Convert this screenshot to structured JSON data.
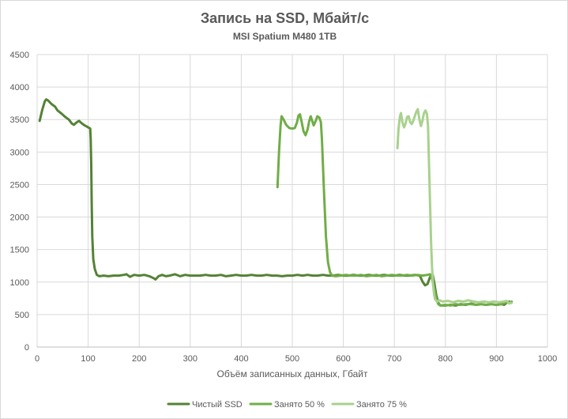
{
  "chart_data": {
    "type": "line",
    "title": "Запись на SSD, Мбайт/с",
    "subtitle": "MSI Spatium M480 1TB",
    "xlabel": "Объём записанных данных, Гбайт",
    "ylabel": "",
    "xlim": [
      0,
      1000
    ],
    "ylim": [
      0,
      4500
    ],
    "xticks": [
      0,
      100,
      200,
      300,
      400,
      500,
      600,
      700,
      800,
      900,
      1000
    ],
    "yticks": [
      0,
      500,
      1000,
      1500,
      2000,
      2500,
      3000,
      3500,
      4000,
      4500
    ],
    "grid": true,
    "legend_position": "bottom",
    "series": [
      {
        "name": "Чистый SSD",
        "color": "#548235",
        "points": [
          [
            5,
            3480
          ],
          [
            10,
            3650
          ],
          [
            15,
            3780
          ],
          [
            18,
            3810
          ],
          [
            22,
            3790
          ],
          [
            28,
            3740
          ],
          [
            35,
            3700
          ],
          [
            40,
            3640
          ],
          [
            48,
            3590
          ],
          [
            55,
            3540
          ],
          [
            62,
            3500
          ],
          [
            68,
            3440
          ],
          [
            72,
            3420
          ],
          [
            78,
            3460
          ],
          [
            82,
            3480
          ],
          [
            88,
            3440
          ],
          [
            93,
            3410
          ],
          [
            98,
            3390
          ],
          [
            102,
            3370
          ],
          [
            104,
            3360
          ],
          [
            105,
            3200
          ],
          [
            106,
            2800
          ],
          [
            107,
            2200
          ],
          [
            108,
            1700
          ],
          [
            110,
            1350
          ],
          [
            113,
            1200
          ],
          [
            117,
            1110
          ],
          [
            122,
            1090
          ],
          [
            130,
            1100
          ],
          [
            140,
            1090
          ],
          [
            150,
            1100
          ],
          [
            160,
            1100
          ],
          [
            170,
            1110
          ],
          [
            175,
            1120
          ],
          [
            182,
            1080
          ],
          [
            190,
            1110
          ],
          [
            200,
            1100
          ],
          [
            210,
            1110
          ],
          [
            220,
            1090
          ],
          [
            228,
            1060
          ],
          [
            232,
            1040
          ],
          [
            238,
            1090
          ],
          [
            245,
            1110
          ],
          [
            252,
            1090
          ],
          [
            260,
            1100
          ],
          [
            270,
            1120
          ],
          [
            280,
            1090
          ],
          [
            290,
            1110
          ],
          [
            300,
            1100
          ],
          [
            310,
            1100
          ],
          [
            320,
            1100
          ],
          [
            330,
            1110
          ],
          [
            340,
            1100
          ],
          [
            350,
            1100
          ],
          [
            360,
            1110
          ],
          [
            370,
            1090
          ],
          [
            380,
            1100
          ],
          [
            390,
            1110
          ],
          [
            400,
            1100
          ],
          [
            410,
            1100
          ],
          [
            420,
            1110
          ],
          [
            430,
            1100
          ],
          [
            440,
            1100
          ],
          [
            450,
            1110
          ],
          [
            460,
            1100
          ],
          [
            470,
            1100
          ],
          [
            480,
            1090
          ],
          [
            490,
            1100
          ],
          [
            500,
            1100
          ],
          [
            510,
            1110
          ],
          [
            520,
            1100
          ],
          [
            530,
            1110
          ],
          [
            540,
            1100
          ],
          [
            550,
            1100
          ],
          [
            560,
            1110
          ],
          [
            570,
            1100
          ],
          [
            580,
            1100
          ],
          [
            590,
            1110
          ],
          [
            600,
            1100
          ],
          [
            610,
            1100
          ],
          [
            620,
            1110
          ],
          [
            630,
            1100
          ],
          [
            640,
            1100
          ],
          [
            650,
            1110
          ],
          [
            660,
            1100
          ],
          [
            670,
            1100
          ],
          [
            680,
            1110
          ],
          [
            690,
            1100
          ],
          [
            700,
            1100
          ],
          [
            710,
            1110
          ],
          [
            720,
            1100
          ],
          [
            730,
            1100
          ],
          [
            740,
            1110
          ],
          [
            750,
            1100
          ],
          [
            755,
            1010
          ],
          [
            760,
            950
          ],
          [
            765,
            970
          ],
          [
            770,
            1080
          ],
          [
            775,
            1110
          ],
          [
            778,
            1000
          ],
          [
            782,
            800
          ],
          [
            786,
            680
          ],
          [
            790,
            640
          ],
          [
            800,
            640
          ],
          [
            810,
            650
          ],
          [
            820,
            640
          ],
          [
            830,
            660
          ],
          [
            840,
            650
          ],
          [
            850,
            670
          ],
          [
            860,
            650
          ],
          [
            870,
            660
          ],
          [
            880,
            650
          ],
          [
            890,
            660
          ],
          [
            900,
            650
          ],
          [
            910,
            660
          ],
          [
            915,
            650
          ],
          [
            920,
            680
          ],
          [
            925,
            700
          ]
        ]
      },
      {
        "name": "Занято 50 %",
        "color": "#70ad47",
        "points": [
          [
            471,
            2460
          ],
          [
            474,
            3000
          ],
          [
            477,
            3400
          ],
          [
            479,
            3550
          ],
          [
            483,
            3500
          ],
          [
            488,
            3420
          ],
          [
            494,
            3370
          ],
          [
            500,
            3360
          ],
          [
            505,
            3370
          ],
          [
            509,
            3450
          ],
          [
            512,
            3560
          ],
          [
            515,
            3580
          ],
          [
            518,
            3480
          ],
          [
            522,
            3320
          ],
          [
            526,
            3260
          ],
          [
            530,
            3350
          ],
          [
            533,
            3470
          ],
          [
            536,
            3550
          ],
          [
            539,
            3480
          ],
          [
            542,
            3410
          ],
          [
            546,
            3480
          ],
          [
            549,
            3550
          ],
          [
            553,
            3530
          ],
          [
            556,
            3460
          ],
          [
            558,
            3200
          ],
          [
            562,
            2400
          ],
          [
            566,
            1700
          ],
          [
            570,
            1300
          ],
          [
            574,
            1150
          ],
          [
            578,
            1100
          ],
          [
            585,
            1090
          ],
          [
            595,
            1100
          ],
          [
            605,
            1110
          ],
          [
            615,
            1100
          ],
          [
            625,
            1100
          ],
          [
            635,
            1110
          ],
          [
            645,
            1090
          ],
          [
            655,
            1100
          ],
          [
            665,
            1110
          ],
          [
            675,
            1090
          ],
          [
            685,
            1100
          ],
          [
            695,
            1110
          ],
          [
            705,
            1100
          ],
          [
            715,
            1100
          ],
          [
            725,
            1110
          ],
          [
            735,
            1100
          ],
          [
            745,
            1110
          ],
          [
            755,
            1100
          ],
          [
            765,
            1110
          ],
          [
            770,
            1120
          ],
          [
            774,
            1050
          ],
          [
            778,
            900
          ],
          [
            782,
            740
          ],
          [
            786,
            660
          ],
          [
            790,
            640
          ],
          [
            800,
            650
          ],
          [
            810,
            640
          ],
          [
            820,
            660
          ],
          [
            830,
            650
          ],
          [
            840,
            660
          ],
          [
            850,
            660
          ],
          [
            860,
            650
          ],
          [
            870,
            660
          ],
          [
            880,
            650
          ],
          [
            890,
            660
          ],
          [
            900,
            650
          ],
          [
            910,
            660
          ],
          [
            920,
            690
          ],
          [
            925,
            680
          ],
          [
            930,
            700
          ]
        ]
      },
      {
        "name": "Занято 75 %",
        "color": "#a9d18e",
        "points": [
          [
            706,
            3060
          ],
          [
            708,
            3350
          ],
          [
            711,
            3550
          ],
          [
            713,
            3600
          ],
          [
            716,
            3450
          ],
          [
            719,
            3380
          ],
          [
            722,
            3440
          ],
          [
            725,
            3540
          ],
          [
            728,
            3550
          ],
          [
            731,
            3460
          ],
          [
            734,
            3430
          ],
          [
            737,
            3480
          ],
          [
            740,
            3550
          ],
          [
            743,
            3620
          ],
          [
            746,
            3660
          ],
          [
            749,
            3500
          ],
          [
            752,
            3400
          ],
          [
            755,
            3480
          ],
          [
            758,
            3600
          ],
          [
            761,
            3640
          ],
          [
            764,
            3580
          ],
          [
            766,
            3400
          ],
          [
            768,
            2800
          ],
          [
            770,
            2200
          ],
          [
            772,
            1600
          ],
          [
            774,
            1200
          ],
          [
            776,
            950
          ],
          [
            778,
            800
          ],
          [
            780,
            730
          ],
          [
            784,
            700
          ],
          [
            788,
            720
          ],
          [
            795,
            700
          ],
          [
            805,
            710
          ],
          [
            815,
            690
          ],
          [
            825,
            710
          ],
          [
            835,
            700
          ],
          [
            845,
            720
          ],
          [
            855,
            700
          ],
          [
            865,
            690
          ],
          [
            875,
            700
          ],
          [
            885,
            690
          ],
          [
            895,
            700
          ],
          [
            905,
            690
          ],
          [
            915,
            700
          ],
          [
            920,
            710
          ],
          [
            925,
            670
          ],
          [
            930,
            680
          ]
        ]
      }
    ]
  }
}
